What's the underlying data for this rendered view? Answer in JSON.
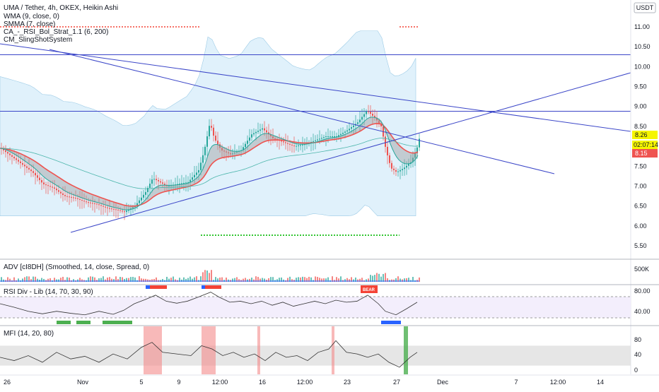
{
  "header": {
    "title": "UMA / Tether, 4h, OKEX, Heikin Ashi",
    "indicators": [
      "WMA (9, close, 0)",
      "SMMA (7, close)",
      "CA_-_RSI_Bol_Strat_1.1 (6, 200)",
      "CM_SlingShotSystem"
    ],
    "currency_badge": "USDT"
  },
  "price_axis": {
    "ticks": [
      "11.00",
      "10.50",
      "10.00",
      "9.50",
      "9.00",
      "8.50",
      "8.00",
      "7.50",
      "7.00",
      "6.50",
      "6.00",
      "5.50"
    ],
    "last_price": "8.26",
    "countdown": "02:07:14",
    "ma_value": "8.15",
    "colors": {
      "last_price": "#f5f500",
      "countdown": "#f5f500",
      "ma_value": "#ef5350"
    }
  },
  "time_axis": {
    "labels": [
      "26",
      "Nov",
      "5",
      "9",
      "12:00",
      "16",
      "12:00",
      "23",
      "27",
      "Dec",
      "7",
      "12:00",
      "14"
    ]
  },
  "panes": {
    "adv": {
      "label": "ADV [cI8DH] (Smoothed, 14, close, Spread, 0)",
      "ticks": [
        "500K"
      ]
    },
    "rsi": {
      "label": "RSI Div - Lib (14, 70, 30, 90)",
      "ticks": [
        "80.00",
        "40.00"
      ],
      "bear_label": "BEAR"
    },
    "mfi": {
      "label": "MFI (14, 20, 80)",
      "ticks": [
        "80",
        "40",
        "0"
      ]
    }
  },
  "chart_data": {
    "type": "line",
    "symbol": "UMA / Tether",
    "timeframe": "4h",
    "exchange": "OKEX",
    "price_ylim": [
      5.3,
      11.4
    ],
    "price_path": [
      [
        0,
        7.95
      ],
      [
        15,
        7.75
      ],
      [
        30,
        7.55
      ],
      [
        45,
        7.35
      ],
      [
        60,
        7.05
      ],
      [
        75,
        6.95
      ],
      [
        90,
        6.75
      ],
      [
        105,
        6.7
      ],
      [
        120,
        6.6
      ],
      [
        135,
        6.55
      ],
      [
        150,
        6.45
      ],
      [
        165,
        6.4
      ],
      [
        175,
        6.35
      ],
      [
        190,
        6.5
      ],
      [
        205,
        6.85
      ],
      [
        215,
        7.2
      ],
      [
        225,
        7.1
      ],
      [
        235,
        7.0
      ],
      [
        250,
        7.05
      ],
      [
        265,
        7.1
      ],
      [
        280,
        7.4
      ],
      [
        288,
        7.9
      ],
      [
        296,
        8.6
      ],
      [
        302,
        8.2
      ],
      [
        312,
        7.9
      ],
      [
        325,
        7.8
      ],
      [
        340,
        7.9
      ],
      [
        355,
        8.3
      ],
      [
        370,
        8.45
      ],
      [
        385,
        8.2
      ],
      [
        400,
        8.1
      ],
      [
        415,
        8.0
      ],
      [
        430,
        8.05
      ],
      [
        445,
        8.15
      ],
      [
        460,
        8.25
      ],
      [
        475,
        8.25
      ],
      [
        490,
        8.4
      ],
      [
        505,
        8.6
      ],
      [
        518,
        8.9
      ],
      [
        530,
        8.7
      ],
      [
        538,
        8.5
      ],
      [
        545,
        7.9
      ],
      [
        552,
        7.45
      ],
      [
        560,
        7.35
      ],
      [
        570,
        7.45
      ],
      [
        580,
        7.6
      ],
      [
        588,
        7.9
      ],
      [
        593,
        8.26
      ]
    ],
    "rsi_ylim": [
      20,
      90
    ],
    "rsi_levels": [
      70,
      30
    ],
    "rsi_path": [
      [
        0,
        55
      ],
      [
        20,
        48
      ],
      [
        40,
        40
      ],
      [
        60,
        35
      ],
      [
        80,
        40
      ],
      [
        100,
        36
      ],
      [
        120,
        33
      ],
      [
        140,
        40
      ],
      [
        160,
        34
      ],
      [
        175,
        42
      ],
      [
        190,
        55
      ],
      [
        205,
        63
      ],
      [
        220,
        72
      ],
      [
        235,
        60
      ],
      [
        250,
        56
      ],
      [
        265,
        60
      ],
      [
        280,
        68
      ],
      [
        298,
        78
      ],
      [
        310,
        68
      ],
      [
        325,
        58
      ],
      [
        340,
        60
      ],
      [
        355,
        55
      ],
      [
        370,
        60
      ],
      [
        385,
        52
      ],
      [
        400,
        58
      ],
      [
        415,
        50
      ],
      [
        430,
        55
      ],
      [
        445,
        60
      ],
      [
        460,
        55
      ],
      [
        475,
        62
      ],
      [
        490,
        58
      ],
      [
        505,
        60
      ],
      [
        520,
        72
      ],
      [
        535,
        55
      ],
      [
        545,
        40
      ],
      [
        560,
        33
      ],
      [
        575,
        45
      ],
      [
        590,
        58
      ]
    ],
    "mfi_ylim": [
      -10,
      110
    ],
    "mfi_band": [
      20,
      80
    ],
    "mfi_path": [
      [
        0,
        45
      ],
      [
        20,
        35
      ],
      [
        40,
        50
      ],
      [
        60,
        30
      ],
      [
        80,
        60
      ],
      [
        100,
        40
      ],
      [
        120,
        48
      ],
      [
        140,
        30
      ],
      [
        160,
        55
      ],
      [
        180,
        40
      ],
      [
        200,
        75
      ],
      [
        215,
        90
      ],
      [
        230,
        60
      ],
      [
        250,
        55
      ],
      [
        270,
        50
      ],
      [
        285,
        80
      ],
      [
        300,
        70
      ],
      [
        315,
        50
      ],
      [
        330,
        60
      ],
      [
        345,
        45
      ],
      [
        360,
        55
      ],
      [
        375,
        35
      ],
      [
        390,
        60
      ],
      [
        405,
        45
      ],
      [
        420,
        50
      ],
      [
        435,
        35
      ],
      [
        450,
        60
      ],
      [
        465,
        70
      ],
      [
        475,
        95
      ],
      [
        490,
        60
      ],
      [
        505,
        55
      ],
      [
        520,
        45
      ],
      [
        535,
        55
      ],
      [
        550,
        30
      ],
      [
        565,
        15
      ],
      [
        580,
        45
      ],
      [
        590,
        60
      ]
    ],
    "mfi_high_zones": [
      [
        203,
        229
      ],
      [
        285,
        305
      ],
      [
        364,
        368
      ],
      [
        469,
        473
      ]
    ],
    "mfi_low_zones": [
      [
        571,
        577
      ]
    ],
    "horizontal_levels": [
      10.3,
      8.88
    ],
    "colors": {
      "candle_up": "#26a69a",
      "candle_down": "#ef5350",
      "band_fill": "#c7e6f7",
      "trendline": "#3b46c8",
      "wma": "#ef5350",
      "smma": "#26a69a",
      "ribbon_up": "#7ee36a",
      "ribbon_down": "#9e9e9e",
      "oscillator": "#333333",
      "signal_blue": "#2962ff",
      "signal_green": "#4caf50",
      "signal_red": "#f44336"
    }
  }
}
